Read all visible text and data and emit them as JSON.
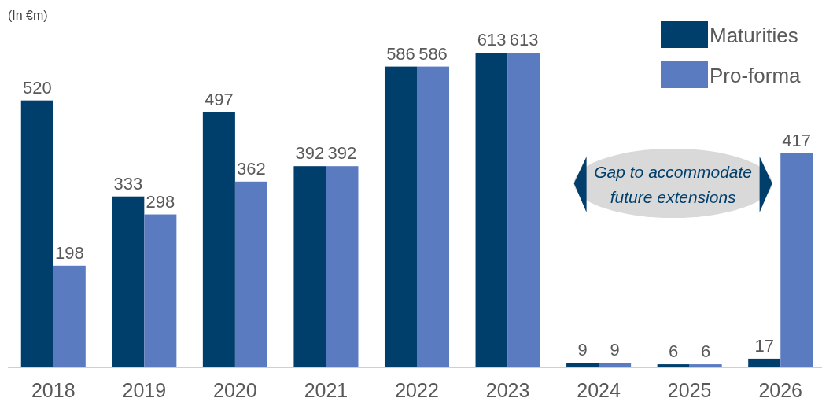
{
  "chart_data": {
    "type": "bar",
    "categories": [
      "2018",
      "2019",
      "2020",
      "2021",
      "2022",
      "2023",
      "2024",
      "2025",
      "2026"
    ],
    "series": [
      {
        "name": "Maturities",
        "color": "#003e6b",
        "values": [
          520,
          333,
          497,
          392,
          586,
          613,
          9,
          6,
          17
        ]
      },
      {
        "name": "Pro-forma",
        "color": "#5b7bc0",
        "values": [
          198,
          298,
          362,
          392,
          586,
          613,
          9,
          6,
          417
        ]
      }
    ],
    "data_labels": true,
    "legend": "top right",
    "annotations": [
      "(In €m)",
      "Gap to accommodate future extensions"
    ]
  }
}
